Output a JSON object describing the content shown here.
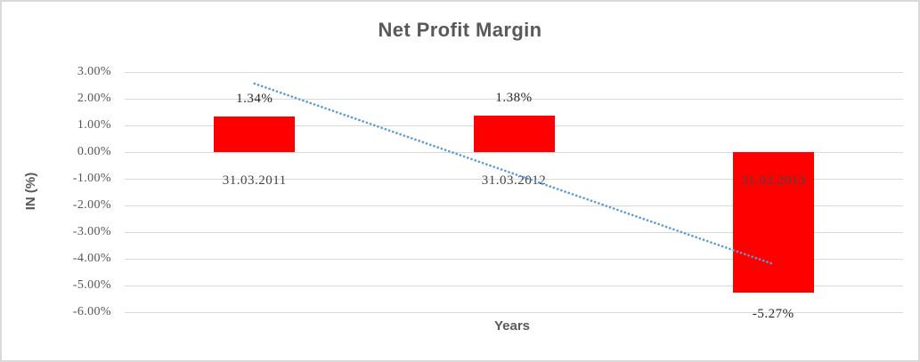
{
  "window": {
    "background_color": "#ffffff",
    "border_color": "#d9d9d9"
  },
  "chart_data": {
    "type": "bar",
    "title": "Net Profit Margin",
    "xlabel": "Years",
    "ylabel": "IN (%)",
    "categories": [
      "31.03.2011",
      "31.03.2012",
      "31.03.2013"
    ],
    "values": [
      1.34,
      1.38,
      -5.27
    ],
    "data_labels": [
      "1.34%",
      "1.38%",
      "-5.27%"
    ],
    "ylim": [
      -6,
      3
    ],
    "ytick_step": 1,
    "ytick_labels": [
      "3.00%",
      "2.00%",
      "1.00%",
      "0.00%",
      "-1.00%",
      "-2.00%",
      "-3.00%",
      "-4.00%",
      "-5.00%",
      "-6.00%"
    ],
    "grid": true,
    "legend_position": "none",
    "bar_color": "#ff0000",
    "gridline_color": "#d9d9d9",
    "text_color": "#595959",
    "trendline": {
      "style": "dotted",
      "color": "#5b9bd5",
      "start_value_pct": 2.56,
      "end_value_pct": -4.19
    }
  }
}
